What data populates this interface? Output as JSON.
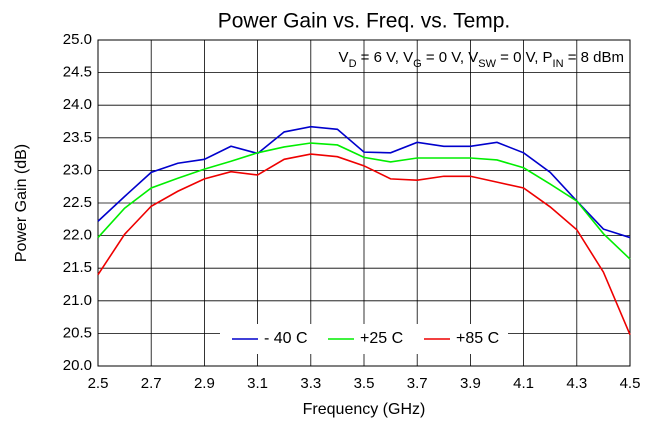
{
  "chart_data": {
    "type": "line",
    "title": "Power Gain vs. Freq. vs. Temp.",
    "x_label": "Frequency (GHz)",
    "y_label": "Power Gain (dB)",
    "annotation": [
      "V",
      "D",
      " = 6 V, V",
      "G",
      " = 0 V, V",
      "SW",
      " = 0 V, P",
      "IN",
      " = 8 dBm"
    ],
    "x": [
      2.5,
      2.6,
      2.7,
      2.8,
      2.9,
      3.0,
      3.1,
      3.2,
      3.3,
      3.4,
      3.5,
      3.6,
      3.7,
      3.8,
      3.9,
      4.0,
      4.1,
      4.2,
      4.3,
      4.4,
      4.5
    ],
    "series": [
      {
        "name": "- 40 C",
        "color": "#0000cc",
        "values": [
          22.22,
          22.6,
          22.97,
          23.11,
          23.17,
          23.37,
          23.26,
          23.59,
          23.67,
          23.63,
          23.28,
          23.27,
          23.43,
          23.37,
          23.37,
          23.43,
          23.27,
          22.97,
          22.53,
          22.1,
          21.97
        ]
      },
      {
        "name": "+25 C",
        "color": "#00ee00",
        "values": [
          21.97,
          22.42,
          22.73,
          22.88,
          23.02,
          23.14,
          23.27,
          23.36,
          23.42,
          23.39,
          23.2,
          23.13,
          23.19,
          23.19,
          23.19,
          23.16,
          23.04,
          22.79,
          22.53,
          22.03,
          21.64
        ]
      },
      {
        "name": "+85 C",
        "color": "#ee0000",
        "values": [
          21.4,
          22.02,
          22.45,
          22.68,
          22.87,
          22.98,
          22.93,
          23.17,
          23.25,
          23.21,
          23.07,
          22.87,
          22.85,
          22.91,
          22.91,
          22.82,
          22.73,
          22.44,
          22.09,
          21.44,
          20.48
        ]
      }
    ],
    "xlim": [
      2.5,
      4.5
    ],
    "xticks": [
      2.5,
      2.7,
      2.9,
      3.1,
      3.3,
      3.5,
      3.7,
      3.9,
      4.1,
      4.3,
      4.5
    ],
    "ylim": [
      20,
      25
    ],
    "yticks": [
      {
        "value": 20,
        "label": "20.0"
      },
      {
        "value": 20.5,
        "label": "20.5"
      },
      {
        "value": 21,
        "label": "21.0"
      },
      {
        "value": 21.5,
        "label": "21.5"
      },
      {
        "value": 22,
        "label": "22.0"
      },
      {
        "value": 22.5,
        "label": "22.5"
      },
      {
        "value": 23,
        "label": "23.0"
      },
      {
        "value": 23.5,
        "label": "23.5"
      },
      {
        "value": 24,
        "label": "24.0"
      },
      {
        "value": 24.5,
        "label": "24.5"
      },
      {
        "value": 25,
        "label": "25.0"
      }
    ],
    "grid": true,
    "legend": "lower center"
  }
}
